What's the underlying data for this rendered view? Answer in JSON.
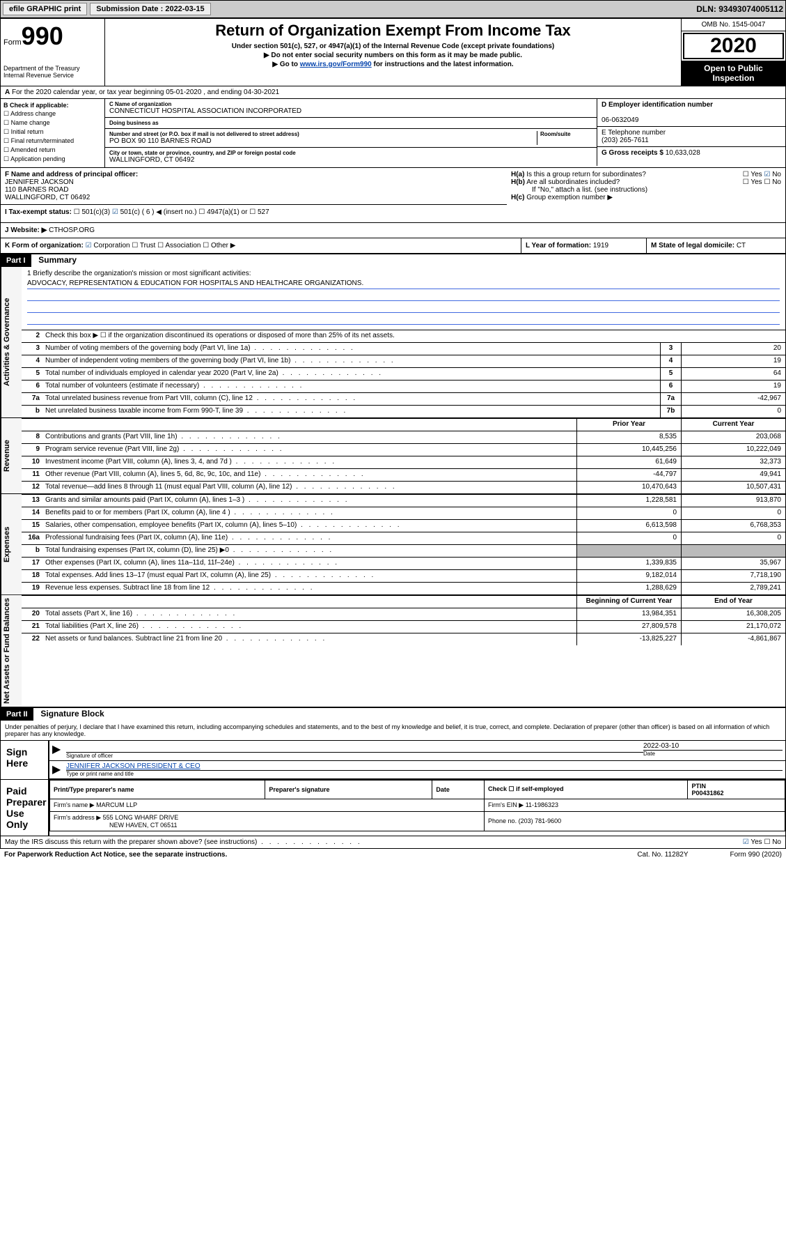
{
  "topbar": {
    "efile": "efile GRAPHIC print",
    "submission_label": "Submission Date :",
    "submission_date": "2022-03-15",
    "dln_label": "DLN:",
    "dln": "93493074005112"
  },
  "header": {
    "form_label": "Form",
    "form_num": "990",
    "dept": "Department of the Treasury\nInternal Revenue Service",
    "title": "Return of Organization Exempt From Income Tax",
    "subtitle": "Under section 501(c), 527, or 4947(a)(1) of the Internal Revenue Code (except private foundations)",
    "note1": "Do not enter social security numbers on this form as it may be made public.",
    "note2": "Go to ",
    "note2_link": "www.irs.gov/Form990",
    "note2_tail": " for instructions and the latest information.",
    "omb": "OMB No. 1545-0047",
    "tax_year": "2020",
    "inspect": "Open to Public Inspection"
  },
  "line_a": "For the 2020 calendar year, or tax year beginning 05-01-2020    , and ending 04-30-2021",
  "section_b": {
    "label": "B Check if applicable:",
    "items": [
      "Address change",
      "Name change",
      "Initial return",
      "Final return/terminated",
      "Amended return",
      "Application pending"
    ]
  },
  "section_c": {
    "name_label": "C Name of organization",
    "name": "CONNECTICUT HOSPITAL ASSOCIATION INCORPORATED",
    "dba_label": "Doing business as",
    "dba": "",
    "street_label": "Number and street (or P.O. box if mail is not delivered to street address)",
    "room_label": "Room/suite",
    "street": "PO BOX 90 110 BARNES ROAD",
    "city_label": "City or town, state or province, country, and ZIP or foreign postal code",
    "city": "WALLINGFORD, CT  06492"
  },
  "section_d": {
    "label": "D Employer identification number",
    "val": "06-0632049"
  },
  "section_e": {
    "label": "E Telephone number",
    "val": "(203) 265-7611"
  },
  "section_g": {
    "label": "G Gross receipts $",
    "val": "10,633,028"
  },
  "section_f": {
    "label": "F Name and address of principal officer:",
    "name": "JENNIFER JACKSON",
    "addr1": "110 BARNES ROAD",
    "addr2": "WALLINGFORD, CT  06492"
  },
  "section_h": {
    "a": "Is this a group return for subordinates?",
    "a_yes": "Yes",
    "a_no": "No",
    "b": "Are all subordinates included?",
    "b_note": "If \"No,\" attach a list. (see instructions)",
    "c": "Group exemption number ▶"
  },
  "section_i": {
    "label": "I  Tax-exempt status:",
    "opts": [
      "501(c)(3)",
      "501(c) ( 6 ) ◀ (insert no.)",
      "4947(a)(1) or",
      "527"
    ]
  },
  "section_j": {
    "label": "J  Website: ▶",
    "val": "CTHOSP.ORG"
  },
  "section_k": {
    "label": "K Form of organization:",
    "opts": [
      "Corporation",
      "Trust",
      "Association",
      "Other ▶"
    ]
  },
  "section_l": {
    "label": "L Year of formation:",
    "val": "1919"
  },
  "section_m": {
    "label": "M State of legal domicile:",
    "val": "CT"
  },
  "part1": {
    "header": "Part I",
    "title": "Summary"
  },
  "mission": {
    "q": "1  Briefly describe the organization's mission or most significant activities:",
    "text": "ADVOCACY, REPRESENTATION & EDUCATION FOR HOSPITALS AND HEALTHCARE ORGANIZATIONS."
  },
  "governance": {
    "side": "Activities & Governance",
    "l2": "Check this box ▶ ☐  if the organization discontinued its operations or disposed of more than 25% of its net assets.",
    "rows": [
      {
        "n": "3",
        "d": "Number of voting members of the governing body (Part VI, line 1a)",
        "box": "3",
        "v": "20"
      },
      {
        "n": "4",
        "d": "Number of independent voting members of the governing body (Part VI, line 1b)",
        "box": "4",
        "v": "19"
      },
      {
        "n": "5",
        "d": "Total number of individuals employed in calendar year 2020 (Part V, line 2a)",
        "box": "5",
        "v": "64"
      },
      {
        "n": "6",
        "d": "Total number of volunteers (estimate if necessary)",
        "box": "6",
        "v": "19"
      },
      {
        "n": "7a",
        "d": "Total unrelated business revenue from Part VIII, column (C), line 12",
        "box": "7a",
        "v": "-42,967"
      },
      {
        "n": "b",
        "d": "Net unrelated business taxable income from Form 990-T, line 39",
        "box": "7b",
        "v": "0"
      }
    ]
  },
  "revenue": {
    "side": "Revenue",
    "head_prior": "Prior Year",
    "head_current": "Current Year",
    "rows": [
      {
        "n": "8",
        "d": "Contributions and grants (Part VIII, line 1h)",
        "p": "8,535",
        "c": "203,068"
      },
      {
        "n": "9",
        "d": "Program service revenue (Part VIII, line 2g)",
        "p": "10,445,256",
        "c": "10,222,049"
      },
      {
        "n": "10",
        "d": "Investment income (Part VIII, column (A), lines 3, 4, and 7d )",
        "p": "61,649",
        "c": "32,373"
      },
      {
        "n": "11",
        "d": "Other revenue (Part VIII, column (A), lines 5, 6d, 8c, 9c, 10c, and 11e)",
        "p": "-44,797",
        "c": "49,941"
      },
      {
        "n": "12",
        "d": "Total revenue—add lines 8 through 11 (must equal Part VIII, column (A), line 12)",
        "p": "10,470,643",
        "c": "10,507,431"
      }
    ]
  },
  "expenses": {
    "side": "Expenses",
    "rows": [
      {
        "n": "13",
        "d": "Grants and similar amounts paid (Part IX, column (A), lines 1–3 )",
        "p": "1,228,581",
        "c": "913,870"
      },
      {
        "n": "14",
        "d": "Benefits paid to or for members (Part IX, column (A), line 4 )",
        "p": "0",
        "c": "0"
      },
      {
        "n": "15",
        "d": "Salaries, other compensation, employee benefits (Part IX, column (A), lines 5–10)",
        "p": "6,613,598",
        "c": "6,768,353"
      },
      {
        "n": "16a",
        "d": "Professional fundraising fees (Part IX, column (A), line 11e)",
        "p": "0",
        "c": "0"
      },
      {
        "n": "b",
        "d": "Total fundraising expenses (Part IX, column (D), line 25) ▶0",
        "p": "",
        "c": "",
        "shaded": true
      },
      {
        "n": "17",
        "d": "Other expenses (Part IX, column (A), lines 11a–11d, 11f–24e)",
        "p": "1,339,835",
        "c": "35,967"
      },
      {
        "n": "18",
        "d": "Total expenses. Add lines 13–17 (must equal Part IX, column (A), line 25)",
        "p": "9,182,014",
        "c": "7,718,190"
      },
      {
        "n": "19",
        "d": "Revenue less expenses. Subtract line 18 from line 12",
        "p": "1,288,629",
        "c": "2,789,241"
      }
    ]
  },
  "netassets": {
    "side": "Net Assets or Fund Balances",
    "head_begin": "Beginning of Current Year",
    "head_end": "End of Year",
    "rows": [
      {
        "n": "20",
        "d": "Total assets (Part X, line 16)",
        "p": "13,984,351",
        "c": "16,308,205"
      },
      {
        "n": "21",
        "d": "Total liabilities (Part X, line 26)",
        "p": "27,809,578",
        "c": "21,170,072"
      },
      {
        "n": "22",
        "d": "Net assets or fund balances. Subtract line 21 from line 20",
        "p": "-13,825,227",
        "c": "-4,861,867"
      }
    ]
  },
  "part2": {
    "header": "Part II",
    "title": "Signature Block"
  },
  "signature": {
    "perjury": "Under penalties of perjury, I declare that I have examined this return, including accompanying schedules and statements, and to the best of my knowledge and belief, it is true, correct, and complete. Declaration of preparer (other than officer) is based on all information of which preparer has any knowledge.",
    "sign_here": "Sign Here",
    "officer_sig_label": "Signature of officer",
    "sig_date": "2022-03-10",
    "date_label": "Date",
    "officer_name": "JENNIFER JACKSON PRESIDENT & CEO",
    "officer_name_label": "Type or print name and title"
  },
  "paid_prep": {
    "label": "Paid Preparer Use Only",
    "cols": [
      "Print/Type preparer's name",
      "Preparer's signature",
      "Date",
      "Check ☐ if self-employed",
      "PTIN"
    ],
    "ptin": "P00431862",
    "firm_name_label": "Firm's name    ▶",
    "firm_name": "MARCUM LLP",
    "firm_ein_label": "Firm's EIN ▶",
    "firm_ein": "11-1986323",
    "firm_addr_label": "Firm's address ▶",
    "firm_addr1": "555 LONG WHARF DRIVE",
    "firm_addr2": "NEW HAVEN, CT  06511",
    "phone_label": "Phone no.",
    "phone": "(203) 781-9600"
  },
  "discuss": {
    "q": "May the IRS discuss this return with the preparer shown above? (see instructions)",
    "yes": "Yes",
    "no": "No"
  },
  "footer": {
    "pra": "For Paperwork Reduction Act Notice, see the separate instructions.",
    "cat": "Cat. No. 11282Y",
    "form": "Form 990 (2020)"
  }
}
